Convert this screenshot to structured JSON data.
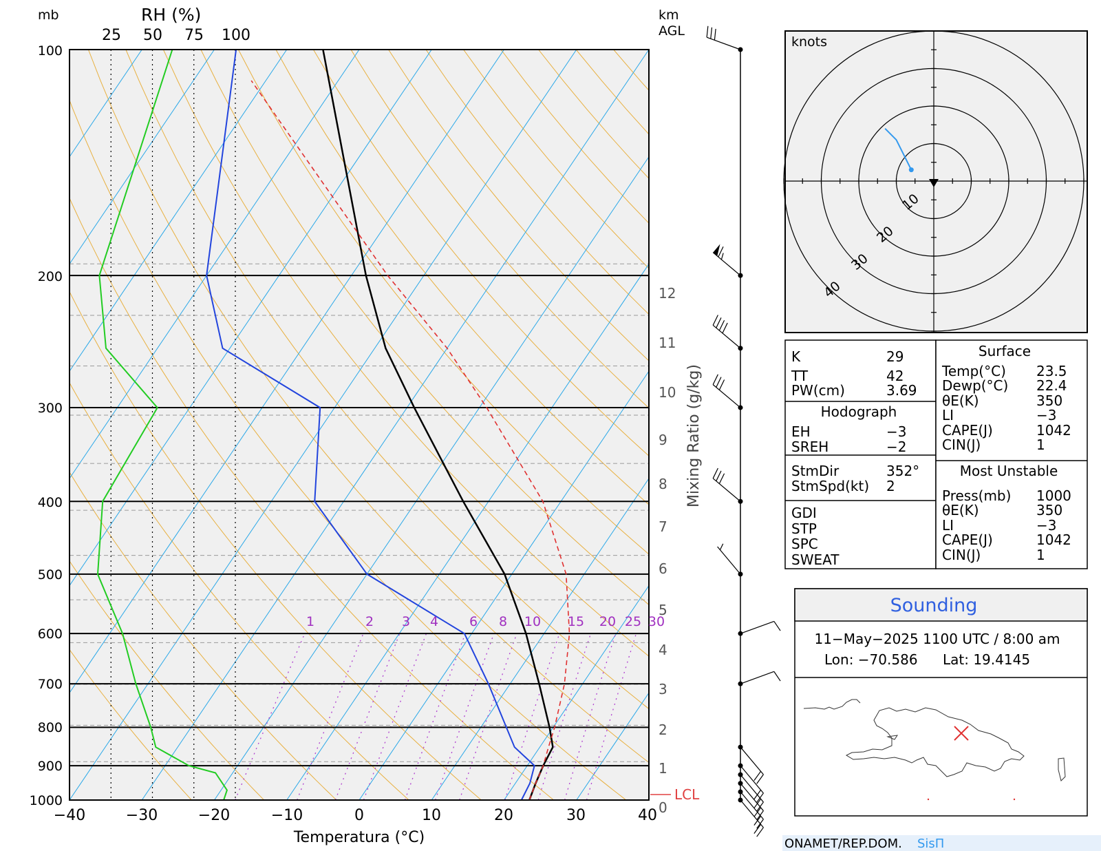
{
  "header": {
    "mb_label": "mb",
    "rh_label": "RH (%)",
    "rh_ticks": [
      "25",
      "50",
      "75",
      "100"
    ],
    "km_label": "km",
    "agl_label": "AGL"
  },
  "axes": {
    "xlabel": "Temperatura (°C)",
    "x_ticks": [
      "−40",
      "−30",
      "−20",
      "−10",
      "0",
      "10",
      "20",
      "30",
      "40"
    ],
    "p_ticks": [
      "100",
      "200",
      "300",
      "400",
      "500",
      "600",
      "700",
      "800",
      "900",
      "1000"
    ],
    "mixing_label": "Mixing Ratio (g/kg)",
    "mixing_ticks": [
      "1",
      "2",
      "3",
      "4",
      "6",
      "8",
      "10",
      "15",
      "20",
      "25",
      "30"
    ],
    "km_ticks": [
      "0",
      "1",
      "2",
      "3",
      "4",
      "5",
      "6",
      "7",
      "8",
      "9",
      "10",
      "11",
      "12"
    ],
    "lcl_label": "LCL"
  },
  "chart_data": {
    "type": "line",
    "title": "",
    "xlabel": "Temperatura (°C)",
    "ylabel": "mb",
    "xlim": [
      -40,
      40
    ],
    "ylim": [
      1000,
      100
    ],
    "yscale": "log",
    "skew_deg_per_log_decade": 70,
    "grid": true,
    "series": [
      {
        "role": "temperature",
        "color": "#000000",
        "points": [
          [
            1000,
            23.5
          ],
          [
            950,
            22.8
          ],
          [
            900,
            22.2
          ],
          [
            850,
            21.8
          ],
          [
            800,
            19.5
          ],
          [
            700,
            14.0
          ],
          [
            600,
            7.5
          ],
          [
            500,
            -1.0
          ],
          [
            400,
            -13.5
          ],
          [
            300,
            -29.0
          ],
          [
            250,
            -38.5
          ],
          [
            200,
            -48.0
          ],
          [
            100,
            -75.0
          ]
        ]
      },
      {
        "role": "dewpoint",
        "color": "#2244dd",
        "points": [
          [
            1000,
            22.4
          ],
          [
            950,
            22.0
          ],
          [
            900,
            21.0
          ],
          [
            850,
            16.5
          ],
          [
            700,
            7.0
          ],
          [
            600,
            -1.0
          ],
          [
            500,
            -20.0
          ],
          [
            400,
            -34.0
          ],
          [
            300,
            -42.0
          ],
          [
            250,
            -61.0
          ],
          [
            200,
            -70.0
          ],
          [
            100,
            -87.0
          ]
        ]
      },
      {
        "role": "parcel",
        "color": "#e03030",
        "dashed": true,
        "points": [
          [
            1000,
            23.5
          ],
          [
            950,
            22.8
          ],
          [
            900,
            22.2
          ],
          [
            850,
            21.2
          ],
          [
            800,
            20.2
          ],
          [
            700,
            17.5
          ],
          [
            600,
            13.5
          ],
          [
            500,
            7.5
          ],
          [
            400,
            -2.5
          ],
          [
            300,
            -19.0
          ],
          [
            250,
            -30.0
          ],
          [
            200,
            -45.0
          ],
          [
            110,
            -82.0
          ]
        ]
      },
      {
        "role": "relative_humidity",
        "color": "#22cc22",
        "axis": "RH (%)",
        "points": [
          [
            1000,
            93
          ],
          [
            970,
            95
          ],
          [
            920,
            88
          ],
          [
            900,
            72
          ],
          [
            850,
            52
          ],
          [
            800,
            49
          ],
          [
            700,
            40
          ],
          [
            600,
            32
          ],
          [
            500,
            17
          ],
          [
            400,
            20
          ],
          [
            300,
            53
          ],
          [
            250,
            22
          ],
          [
            200,
            18
          ],
          [
            100,
            62
          ]
        ]
      }
    ],
    "lcl_pressure_mb": 1000,
    "mixing_ratio_lines_gkg": [
      1,
      2,
      3,
      4,
      6,
      8,
      10,
      15,
      20,
      25,
      30
    ]
  },
  "wind_profile": [
    {
      "pressure_mb": 1000,
      "direction_deg": 140,
      "speed_kt": 20
    },
    {
      "pressure_mb": 975,
      "direction_deg": 140,
      "speed_kt": 20
    },
    {
      "pressure_mb": 950,
      "direction_deg": 140,
      "speed_kt": 20
    },
    {
      "pressure_mb": 925,
      "direction_deg": 140,
      "speed_kt": 20
    },
    {
      "pressure_mb": 900,
      "direction_deg": 140,
      "speed_kt": 20
    },
    {
      "pressure_mb": 850,
      "direction_deg": 140,
      "speed_kt": 20
    },
    {
      "pressure_mb": 700,
      "direction_deg": 70,
      "speed_kt": 10
    },
    {
      "pressure_mb": 600,
      "direction_deg": 70,
      "speed_kt": 10
    },
    {
      "pressure_mb": 500,
      "direction_deg": 320,
      "speed_kt": 5
    },
    {
      "pressure_mb": 400,
      "direction_deg": 310,
      "speed_kt": 30
    },
    {
      "pressure_mb": 300,
      "direction_deg": 310,
      "speed_kt": 30
    },
    {
      "pressure_mb": 250,
      "direction_deg": 310,
      "speed_kt": 40
    },
    {
      "pressure_mb": 200,
      "direction_deg": 310,
      "speed_kt": 65
    },
    {
      "pressure_mb": 100,
      "direction_deg": 290,
      "speed_kt": 30
    }
  ],
  "hodograph": {
    "units_label": "knots",
    "ring_labels": [
      "10",
      "20",
      "30",
      "40"
    ],
    "ring_values": [
      10,
      20,
      30,
      40
    ],
    "trace_color": "#3399ee",
    "trace": [
      [
        -6,
        3
      ],
      [
        -8,
        7
      ],
      [
        -10,
        11
      ],
      [
        -13,
        14
      ]
    ]
  },
  "indices": {
    "rows": [
      {
        "label": "K",
        "value": "29"
      },
      {
        "label": "TT",
        "value": "42"
      },
      {
        "label": "PW(cm)",
        "value": "3.69"
      }
    ],
    "hodograph_title": "Hodograph",
    "hodograph_rows": [
      {
        "label": "EH",
        "value": "−3"
      },
      {
        "label": "SREH",
        "value": "−2"
      }
    ],
    "storm_rows": [
      {
        "label": "StmDir",
        "value": "352°"
      },
      {
        "label": "StmSpd(kt)",
        "value": "2"
      }
    ],
    "other_labels": [
      "GDI",
      "STP",
      "SPC",
      "SWEAT"
    ]
  },
  "surface": {
    "title": "Surface",
    "rows": [
      {
        "label": "Temp(°C)",
        "value": "23.5"
      },
      {
        "label": "Dewp(°C)",
        "value": "22.4"
      },
      {
        "label": "θE(K)",
        "value": "350"
      },
      {
        "label": "LI",
        "value": "−3"
      },
      {
        "label": "CAPE(J)",
        "value": "1042"
      },
      {
        "label": "CIN(J)",
        "value": "1"
      }
    ]
  },
  "most_unstable": {
    "title": "Most Unstable",
    "rows": [
      {
        "label": "Press(mb)",
        "value": "1000"
      },
      {
        "label": "θE(K)",
        "value": "350"
      },
      {
        "label": "LI",
        "value": "−3"
      },
      {
        "label": "CAPE(J)",
        "value": "1042"
      },
      {
        "label": "CIN(J)",
        "value": "1"
      }
    ]
  },
  "sounding": {
    "title": "Sounding",
    "datetime": "11−May−2025 1100 UTC / 8:00 am",
    "lon_text": "Lon: −70.586",
    "lat_text": "Lat: 19.4145"
  },
  "footer": {
    "org": "ONAMET/REP.DOM.",
    "brand": "SisΠ"
  },
  "colors": {
    "plot_bg": "#f0f0f0",
    "dry_adiabat": "#e8b040",
    "isotherm": "#2aa8e8",
    "mixing_ratio": "#b040d0",
    "lcl": "#e04040",
    "sounding_title": "#3060e0",
    "brand": "#3399ee",
    "footer_bg": "#e6f0fb"
  }
}
